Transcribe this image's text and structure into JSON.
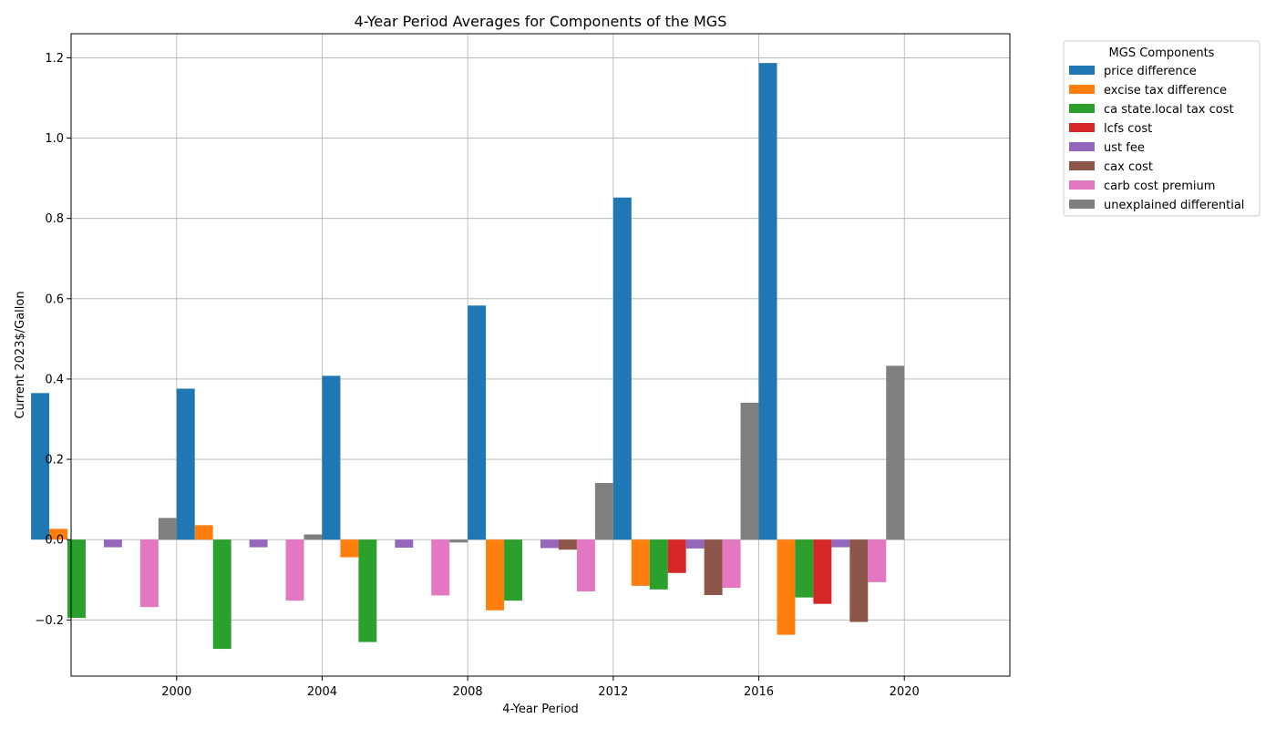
{
  "chart_data": {
    "type": "bar",
    "title": "4-Year Period Averages for Components of the MGS",
    "xlabel": "4-Year Period",
    "ylabel": "Current 2023$/Gallon",
    "categories": [
      "2000",
      "2004",
      "2008",
      "2012",
      "2016",
      "2020"
    ],
    "ylim": [
      -0.34,
      1.26
    ],
    "xlim": [
      1997.1,
      2022.9
    ],
    "yticks": [
      -0.2,
      0.0,
      0.2,
      0.4,
      0.6,
      0.8,
      1.0,
      1.2
    ],
    "ytick_labels": [
      "−0.2",
      "0.0",
      "0.2",
      "0.4",
      "0.6",
      "0.8",
      "1.0",
      "1.2"
    ],
    "grid": true,
    "legend": {
      "title": "MGS Components",
      "placement": "outside-top-right"
    },
    "series": [
      {
        "name": "price difference",
        "color": "#1f77b4",
        "values": [
          0.365,
          0.376,
          0.408,
          0.583,
          0.852,
          1.187
        ]
      },
      {
        "name": "excise tax difference",
        "color": "#ff7f0e",
        "values": [
          0.027,
          0.036,
          -0.044,
          -0.176,
          -0.115,
          -0.237
        ]
      },
      {
        "name": "ca state.local tax cost",
        "color": "#2ca02c",
        "values": [
          -0.195,
          -0.272,
          -0.255,
          -0.152,
          -0.124,
          -0.144
        ]
      },
      {
        "name": "lcfs cost",
        "color": "#d62728",
        "values": [
          0.0,
          0.0,
          0.0,
          0.0,
          -0.083,
          -0.16
        ]
      },
      {
        "name": "ust fee",
        "color": "#9467bd",
        "values": [
          -0.019,
          -0.019,
          -0.02,
          -0.021,
          -0.022,
          -0.019
        ]
      },
      {
        "name": "cax cost",
        "color": "#8c564b",
        "values": [
          0.0,
          0.0,
          0.0,
          -0.025,
          -0.138,
          -0.205
        ]
      },
      {
        "name": "carb cost premium",
        "color": "#e377c2",
        "values": [
          -0.168,
          -0.152,
          -0.139,
          -0.129,
          -0.12,
          -0.106
        ]
      },
      {
        "name": "unexplained differential",
        "color": "#7f7f7f",
        "values": [
          0.054,
          0.013,
          -0.007,
          0.141,
          0.341,
          0.433
        ]
      }
    ]
  }
}
